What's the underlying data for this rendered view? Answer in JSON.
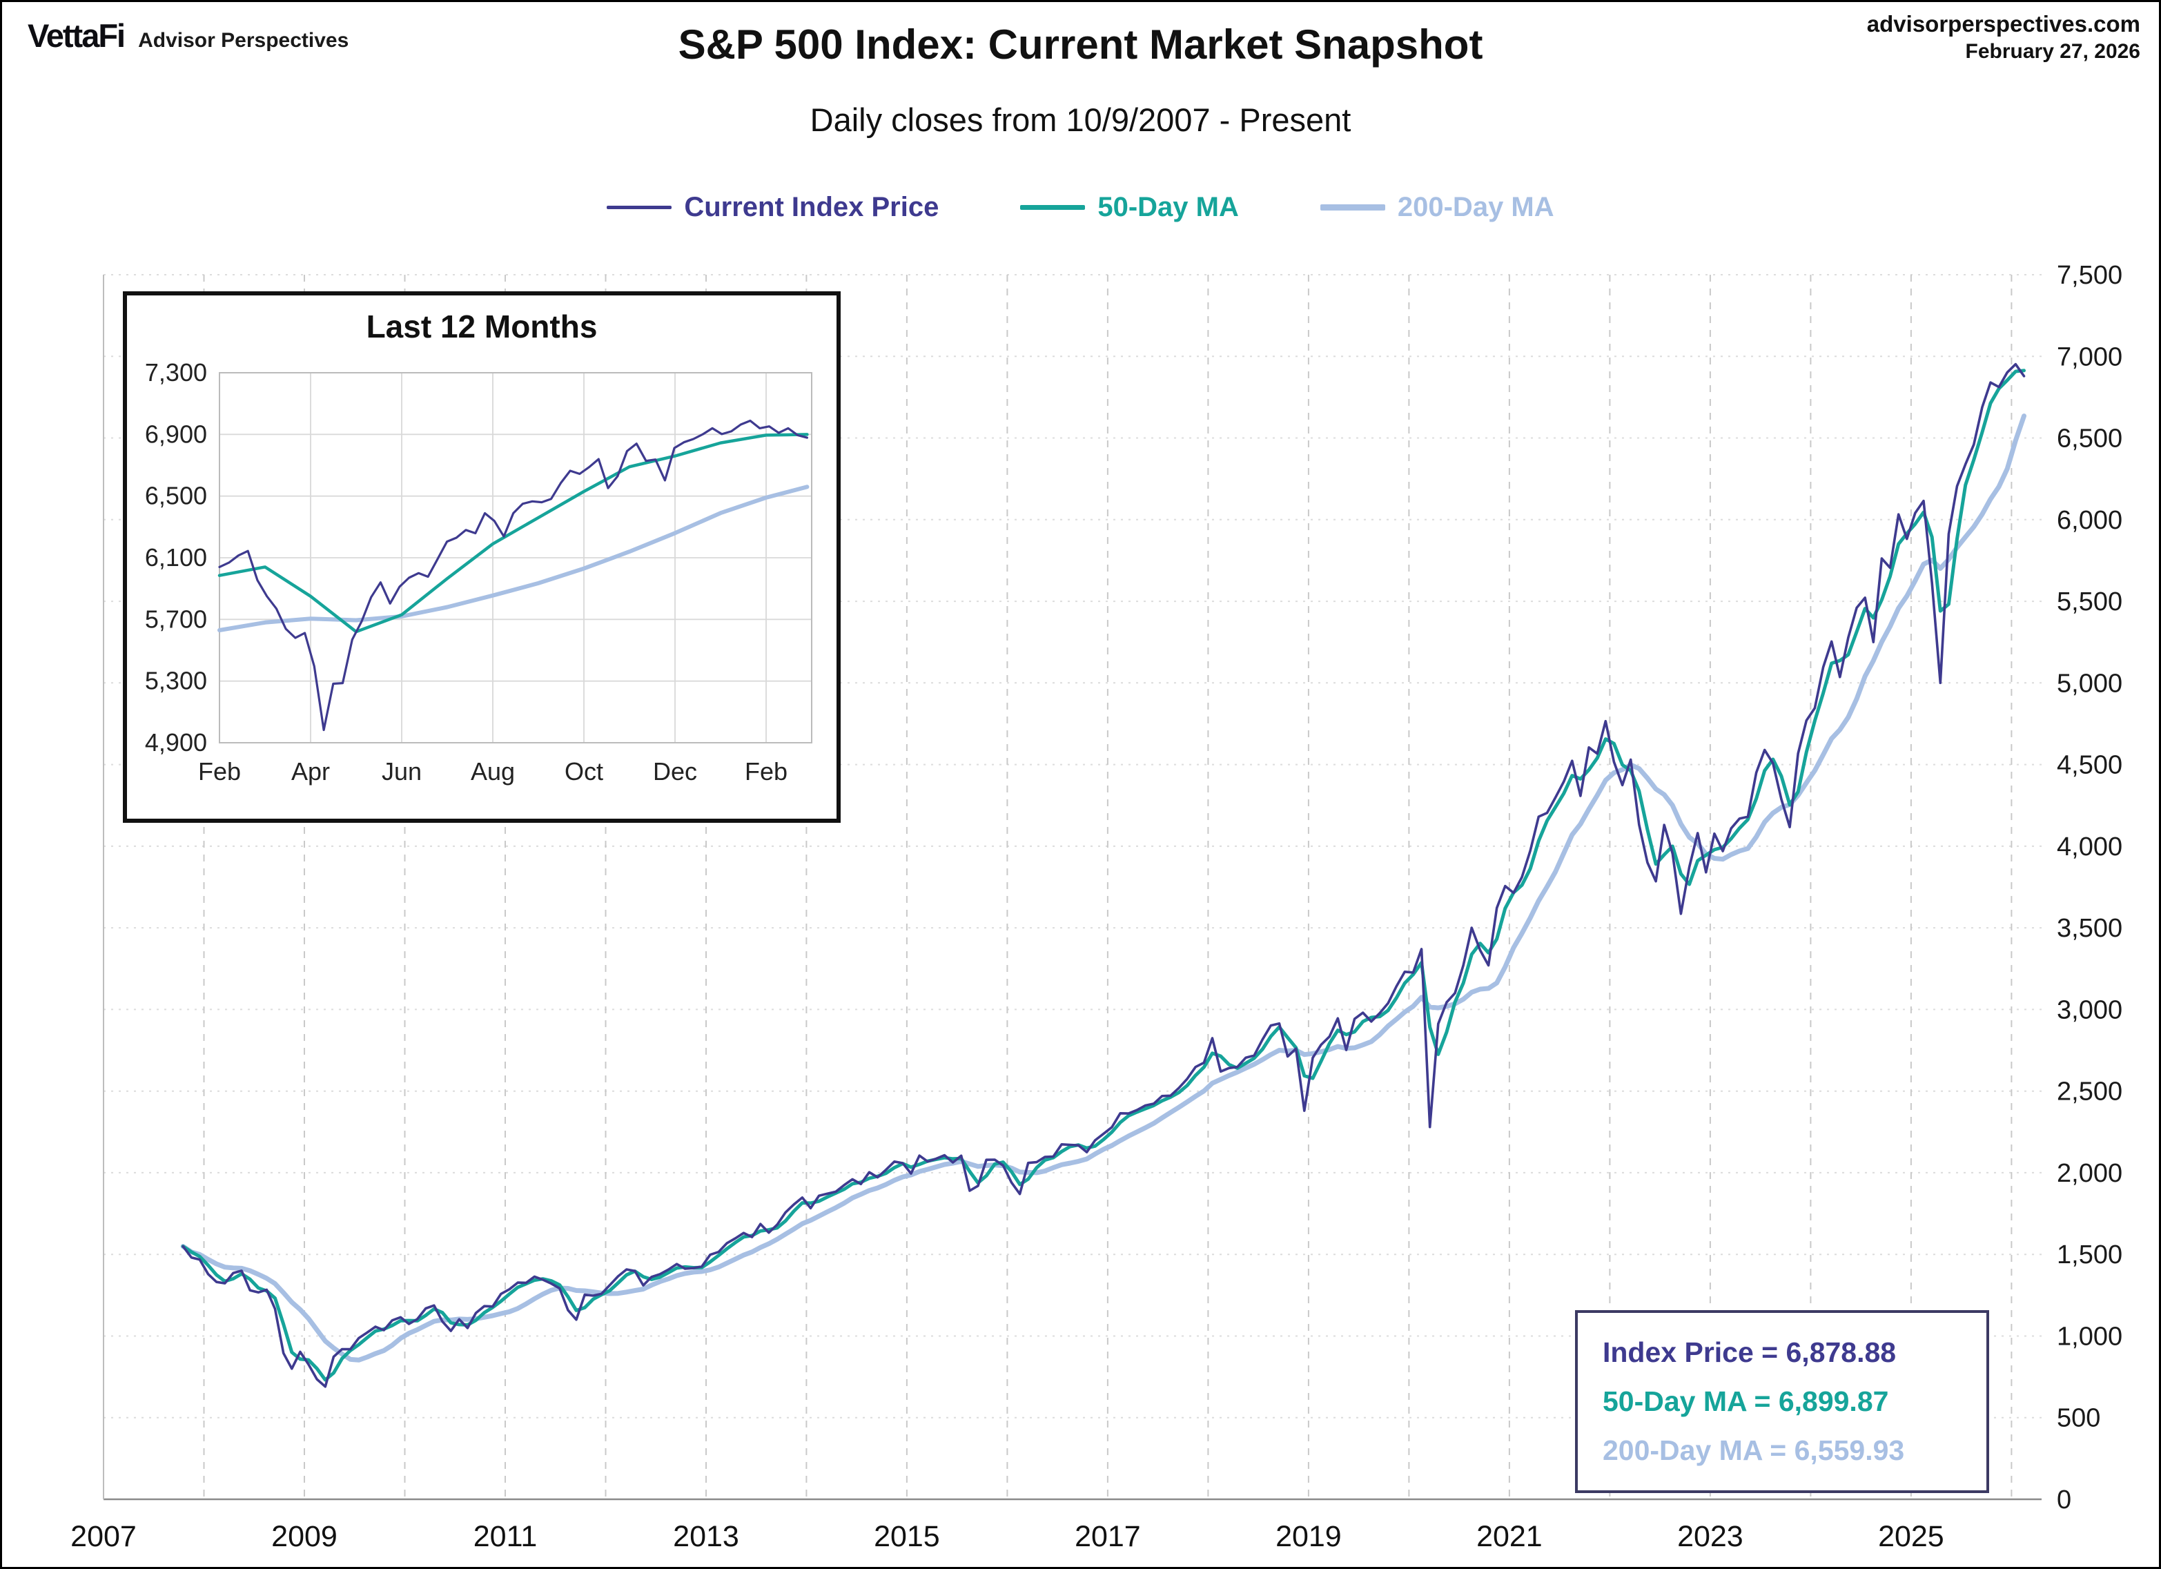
{
  "meta": {
    "brand": "VettaFi",
    "brand_sub": "Advisor Perspectives",
    "site": "advisorperspectives.com",
    "date": "February 27, 2026"
  },
  "title": "S&P 500 Index: Current Market Snapshot",
  "subtitle": "Daily closes from 10/9/2007 - Present",
  "legend": [
    {
      "label": "Current Index Price",
      "color": "#3e3a8f"
    },
    {
      "label": "50-Day MA",
      "color": "#16a49a"
    },
    {
      "label": "200-Day MA",
      "color": "#a7bfe3"
    }
  ],
  "info_box": {
    "lines": [
      {
        "label": "Index Price = 6,878.88",
        "color": "#3e3a8f"
      },
      {
        "label": "50-Day MA = 6,899.87",
        "color": "#16a49a"
      },
      {
        "label": "200-Day MA = 6,559.93",
        "color": "#a7bfe3"
      }
    ]
  },
  "chart_data": {
    "type": "line",
    "title": "S&P 500 Index: Current Market Snapshot",
    "subtitle": "Daily closes from 10/9/2007 - Present",
    "series_names": [
      "Current Index Price",
      "50-Day MA",
      "200-Day MA"
    ],
    "latest": {
      "index_price": 6878.88,
      "ma50": 6899.87,
      "ma200": 6559.93
    },
    "main": {
      "ylim": [
        0,
        7500
      ],
      "y_tick_step": 500,
      "y_ticks": [
        "0",
        "500",
        "1,000",
        "1,500",
        "2,000",
        "2,500",
        "3,000",
        "3,500",
        "4,000",
        "4,500",
        "5,000",
        "5,500",
        "6,000",
        "6,500",
        "7,000",
        "7,500"
      ],
      "x_tick_years": [
        2007,
        2009,
        2011,
        2013,
        2015,
        2017,
        2019,
        2021,
        2023,
        2025
      ],
      "grid_year_end": 2026,
      "x_start": {
        "year": 2007,
        "month": 10
      },
      "monthly_close": [
        1549,
        1481,
        1468,
        1379,
        1331,
        1323,
        1386,
        1400,
        1280,
        1267,
        1283,
        1166,
        895,
        800,
        903,
        826,
        735,
        690,
        873,
        919,
        919,
        987,
        1021,
        1057,
        1036,
        1096,
        1115,
        1074,
        1104,
        1169,
        1187,
        1089,
        1031,
        1102,
        1049,
        1141,
        1183,
        1181,
        1258,
        1286,
        1327,
        1326,
        1364,
        1345,
        1321,
        1292,
        1159,
        1100,
        1253,
        1247,
        1258,
        1312,
        1366,
        1408,
        1398,
        1310,
        1362,
        1379,
        1407,
        1441,
        1412,
        1416,
        1426,
        1498,
        1515,
        1569,
        1598,
        1631,
        1606,
        1686,
        1633,
        1682,
        1757,
        1806,
        1848,
        1783,
        1859,
        1872,
        1884,
        1924,
        1960,
        1931,
        2003,
        1972,
        2018,
        2068,
        2059,
        1995,
        2105,
        2068,
        2086,
        2107,
        2063,
        2104,
        1890,
        1920,
        2079,
        2080,
        2044,
        1940,
        1870,
        2060,
        2065,
        2097,
        2099,
        2174,
        2171,
        2168,
        2126,
        2199,
        2239,
        2279,
        2364,
        2363,
        2384,
        2412,
        2423,
        2470,
        2472,
        2519,
        2575,
        2648,
        2674,
        2824,
        2620,
        2641,
        2648,
        2705,
        2718,
        2816,
        2902,
        2914,
        2712,
        2760,
        2380,
        2704,
        2784,
        2834,
        2946,
        2752,
        2942,
        2980,
        2926,
        2977,
        3038,
        3141,
        3231,
        3226,
        3370,
        2280,
        2912,
        3044,
        3100,
        3271,
        3500,
        3363,
        3270,
        3622,
        3756,
        3714,
        3811,
        3973,
        4181,
        4204,
        4298,
        4395,
        4523,
        4308,
        4605,
        4567,
        4766,
        4516,
        4374,
        4530,
        4132,
        3900,
        3785,
        4130,
        3955,
        3586,
        3872,
        4080,
        3840,
        4077,
        3970,
        4109,
        4169,
        4180,
        4450,
        4589,
        4508,
        4288,
        4117,
        4568,
        4770,
        4846,
        5096,
        5254,
        5036,
        5278,
        5460,
        5522,
        5250,
        5762,
        5705,
        6032,
        5882,
        6041,
        6115,
        5612,
        5000,
        5912,
        6205,
        6339,
        6460,
        6688,
        6840,
        6812,
        6902,
        6952,
        6878.88
      ]
    },
    "inset": {
      "title": "Last 12 Months",
      "ylim": [
        4900,
        7300
      ],
      "y_tick_step": 400,
      "y_ticks": [
        "7,300",
        "6,900",
        "6,500",
        "6,100",
        "5,700",
        "5,300",
        "4,900"
      ],
      "x_labels": [
        "Feb",
        "Apr",
        "Jun",
        "Aug",
        "Oct",
        "Dec",
        "Feb"
      ],
      "months_span": 13,
      "x_end": 12.9,
      "price_weekly": [
        6040,
        6068,
        6115,
        6144,
        5955,
        5850,
        5770,
        5639,
        5580,
        5612,
        5396,
        4983,
        5283,
        5287,
        5569,
        5687,
        5844,
        5940,
        5803,
        5912,
        5970,
        6000,
        5977,
        6090,
        6205,
        6230,
        6280,
        6259,
        6389,
        6339,
        6238,
        6389,
        6450,
        6466,
        6460,
        6482,
        6584,
        6664,
        6644,
        6688,
        6740,
        6552,
        6629,
        6792,
        6840,
        6728,
        6737,
        6602,
        6812,
        6849,
        6870,
        6901,
        6940,
        6902,
        6920,
        6964,
        6989,
        6940,
        6952,
        6910,
        6940,
        6895,
        6878.88
      ],
      "ma50_monthly": [
        5985,
        6040,
        5850,
        5620,
        5730,
        5965,
        6190,
        6360,
        6530,
        6690,
        6760,
        6845,
        6895,
        6899.87
      ],
      "ma200_monthly": [
        5630,
        5680,
        5705,
        5695,
        5720,
        5780,
        5855,
        5935,
        6030,
        6140,
        6260,
        6390,
        6490,
        6559.93
      ]
    }
  }
}
